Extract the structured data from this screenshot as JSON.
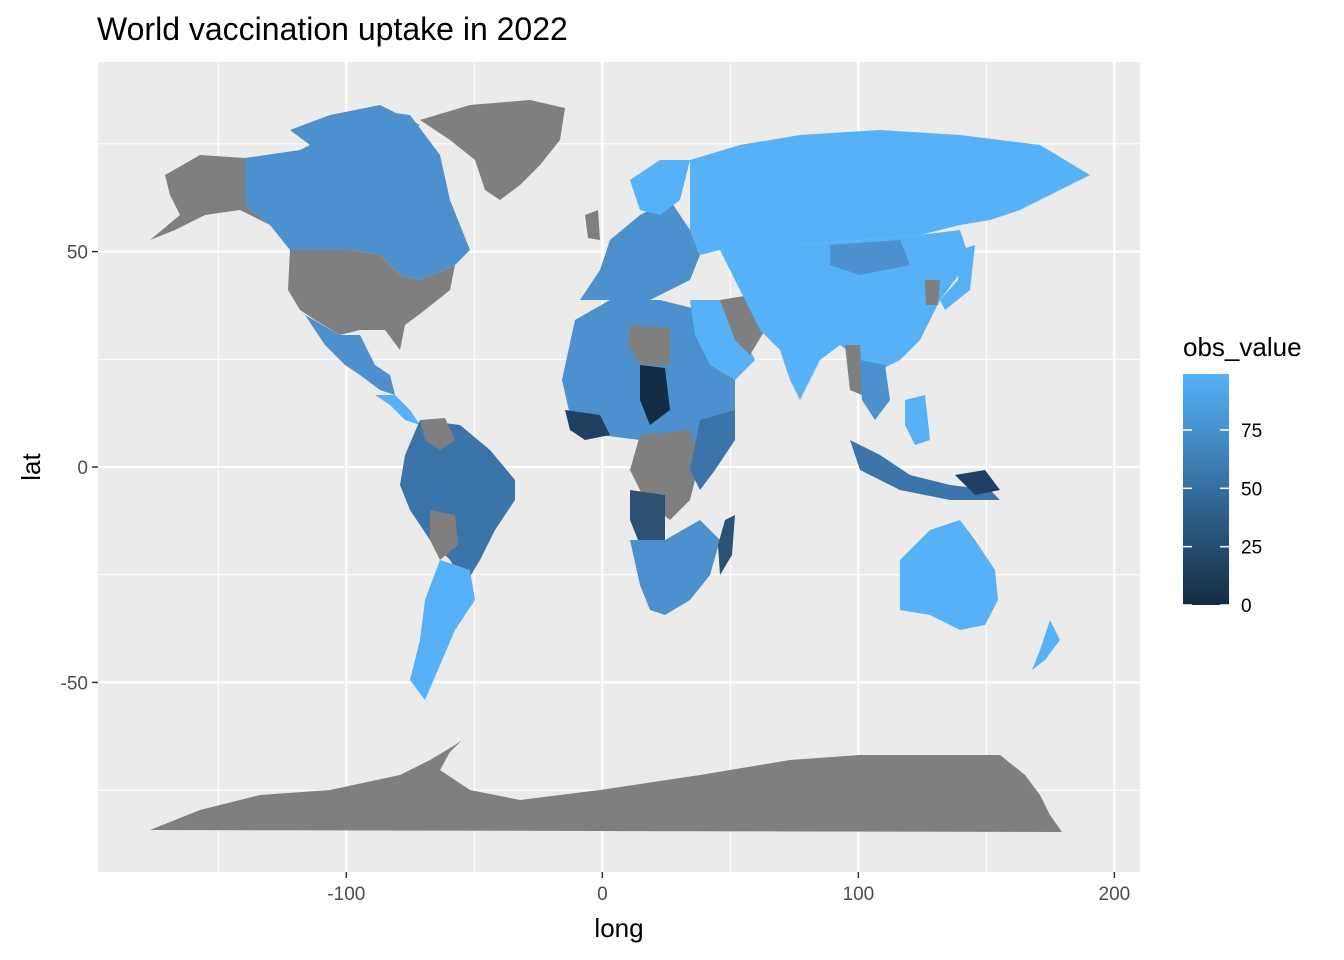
{
  "chart_data": {
    "type": "choropleth",
    "title": "World vaccination uptake in 2022",
    "xlabel": "long",
    "ylabel": "lat",
    "xlim": [
      -197,
      210
    ],
    "ylim": [
      -94,
      94
    ],
    "x_ticks": [
      -100,
      0,
      100,
      200
    ],
    "x_tick_labels": [
      "-100",
      "0",
      "100",
      "200"
    ],
    "y_ticks": [
      -50,
      0,
      50
    ],
    "y_tick_labels": [
      "-50",
      "0",
      "50"
    ],
    "grid": true,
    "legend": {
      "title": "obs_value",
      "placement": "right",
      "type": "colorbar",
      "range": [
        0,
        99
      ],
      "ticks": [
        0,
        25,
        50,
        75
      ],
      "tick_labels": [
        "0",
        "25",
        "50",
        "75"
      ],
      "low_color": "#132B43",
      "high_color": "#56B1F7"
    },
    "na_color": "#7F7F7F",
    "panel_background": "#EBEBEB",
    "gridline_color": "#FFFFFF"
  }
}
